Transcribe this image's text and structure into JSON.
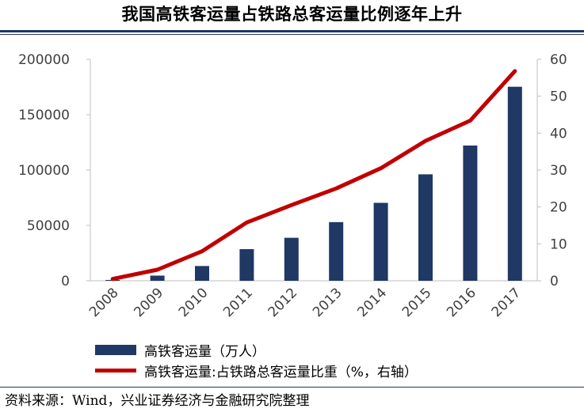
{
  "title": "我国高铁客运量占铁路总客运量比例逐年上升",
  "source": "资料来源：Wind，兴业证券经济与金融研究院整理",
  "colors": {
    "bar": "#1f3864",
    "line": "#c00000",
    "rule": "#1f3864",
    "axis": "#bfbfbf"
  },
  "legend": [
    {
      "label": "高铁客运量（万人）",
      "swatch": "bar"
    },
    {
      "label": "高铁客运量:占铁路总客运量比重（%，右轴）",
      "swatch": "line"
    }
  ],
  "chart_data": {
    "type": "bar+line",
    "categories": [
      "2008",
      "2009",
      "2010",
      "2011",
      "2012",
      "2013",
      "2014",
      "2015",
      "2016",
      "2017"
    ],
    "series": [
      {
        "name": "高铁客运量（万人）",
        "type": "bar",
        "axis": "left",
        "values": [
          734,
          4651,
          13323,
          28552,
          38815,
          52962,
          70378,
          96139,
          122128,
          175216
        ]
      },
      {
        "name": "高铁客运量:占铁路总客运量比重（%，右轴）",
        "type": "line",
        "axis": "right",
        "values": [
          0.5,
          3.0,
          8.0,
          15.8,
          20.5,
          25.0,
          30.5,
          37.9,
          43.4,
          56.8
        ]
      }
    ],
    "y_left": {
      "min": 0,
      "max": 200000,
      "ticks": [
        "0",
        "50000",
        "100000",
        "150000",
        "200000"
      ]
    },
    "y_right": {
      "min": 0,
      "max": 60,
      "ticks": [
        "0",
        "10",
        "20",
        "30",
        "40",
        "50",
        "60"
      ]
    },
    "grid": false,
    "legend_position": "bottom"
  }
}
